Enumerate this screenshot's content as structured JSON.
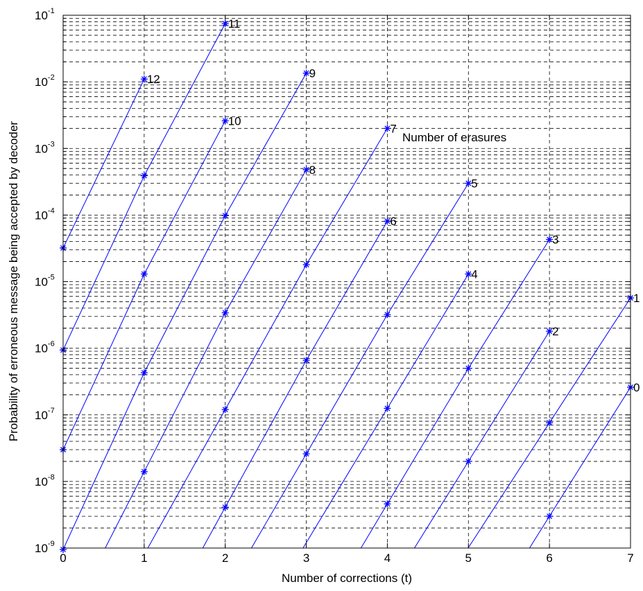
{
  "chart_data": {
    "type": "line",
    "title": "",
    "xlabel": "Number of corrections (t)",
    "ylabel": "Probability of erroneous message being accepted by decoder",
    "y_scale": "log",
    "xlim": [
      0,
      7
    ],
    "ylim": [
      1e-09,
      0.1
    ],
    "x_ticks": [
      "0",
      "1",
      "2",
      "3",
      "4",
      "5",
      "6",
      "7"
    ],
    "y_tick_exponents": [
      "-9",
      "-8",
      "-7",
      "-6",
      "-5",
      "-4",
      "-3",
      "-2",
      "-1"
    ],
    "grid": true,
    "line_color": "#0000ff",
    "annotation": "Number of erasures",
    "series": [
      {
        "name": "12",
        "x": [
          0,
          1
        ],
        "y": [
          3.2e-05,
          0.011
        ]
      },
      {
        "name": "11",
        "x": [
          0,
          1,
          2
        ],
        "y": [
          9.4e-07,
          0.00039,
          0.075
        ]
      },
      {
        "name": "10",
        "x": [
          0,
          1,
          2
        ],
        "y": [
          3e-08,
          1.3e-05,
          0.0026
        ]
      },
      {
        "name": "9",
        "x": [
          0,
          1,
          2,
          3
        ],
        "y": [
          9.5e-10,
          4.3e-07,
          9.8e-05,
          0.0135
        ]
      },
      {
        "name": "8",
        "x": [
          1,
          2,
          3
        ],
        "y": [
          1.4e-08,
          3.4e-06,
          0.00048
        ]
      },
      {
        "name": "7",
        "x": [
          2,
          3,
          4
        ],
        "y": [
          1.2e-07,
          1.8e-05,
          0.002
        ]
      },
      {
        "name": "6",
        "x": [
          2,
          3,
          4
        ],
        "y": [
          4.1e-09,
          6.6e-07,
          8.1e-05
        ]
      },
      {
        "name": "5",
        "x": [
          3,
          4,
          5
        ],
        "y": [
          2.6e-08,
          3.2e-06,
          0.0003
        ]
      },
      {
        "name": "4",
        "x": [
          4,
          5
        ],
        "y": [
          1.25e-07,
          1.3e-05
        ]
      },
      {
        "name": "3",
        "x": [
          4,
          5,
          6
        ],
        "y": [
          4.6e-09,
          5e-07,
          4.3e-05
        ]
      },
      {
        "name": "2",
        "x": [
          5,
          6
        ],
        "y": [
          2e-08,
          1.8e-06
        ]
      },
      {
        "name": "1",
        "x": [
          6,
          7
        ],
        "y": [
          7.6e-08,
          5.7e-06
        ]
      },
      {
        "name": "0",
        "x": [
          6,
          7
        ],
        "y": [
          3e-09,
          2.6e-07
        ]
      }
    ]
  }
}
